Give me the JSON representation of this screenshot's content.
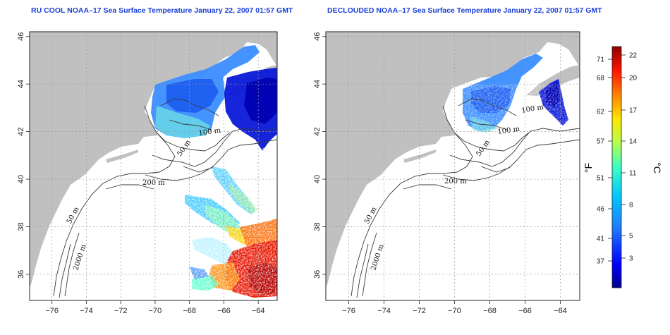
{
  "titles": {
    "left": "RU COOL NOAA–17 Sea Surface Temperature January 22, 2007 01:57 GMT",
    "right": "DECLOUDED NOAA–17 Sea Surface Temperature January 22, 2007 01:57 GMT"
  },
  "x_ticks": [
    {
      "value": -76,
      "label": "−76"
    },
    {
      "value": -74,
      "label": "−74"
    },
    {
      "value": -72,
      "label": "−72"
    },
    {
      "value": -70,
      "label": "−70"
    },
    {
      "value": -68,
      "label": "−68"
    },
    {
      "value": -66,
      "label": "−66"
    },
    {
      "value": -64,
      "label": "−64"
    }
  ],
  "y_ticks": [
    {
      "value": 36,
      "label": "36"
    },
    {
      "value": 38,
      "label": "38"
    },
    {
      "value": 40,
      "label": "40"
    },
    {
      "value": 42,
      "label": "42"
    },
    {
      "value": 44,
      "label": "44"
    },
    {
      "value": 46,
      "label": "46"
    }
  ],
  "lon_range": [
    -77.3,
    -62.9
  ],
  "lat_range": [
    34.9,
    46.2
  ],
  "contour_labels": {
    "m50": "50 m",
    "m100": "100 m",
    "m200": "200 m",
    "m2000": "2000 m"
  },
  "colorbar": {
    "fahrenheit_unit": "°F",
    "celsius_unit": "°C",
    "fahrenheit_ticks": [
      "71",
      "68",
      "62",
      "57",
      "51",
      "46",
      "41",
      "37"
    ],
    "celsius_ticks": [
      "22",
      "20",
      "17",
      "14",
      "11",
      "8",
      "5",
      "3"
    ],
    "colors": [
      "#00008f",
      "#0000ff",
      "#1e7dff",
      "#00c8ff",
      "#3cffc3",
      "#b4ff4b",
      "#ffe600",
      "#ff8200",
      "#ff1400",
      "#8f0000"
    ]
  },
  "colors": {
    "land": "#c0c0c0",
    "water": "#ffffff",
    "grid": "#9a9a9a",
    "title": "#1a3fd6"
  }
}
